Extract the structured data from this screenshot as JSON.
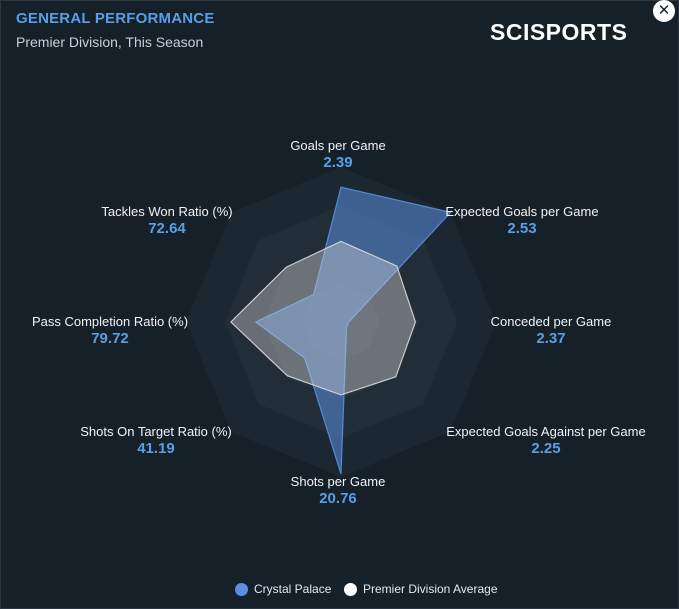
{
  "header": {
    "title": "GENERAL PERFORMANCE",
    "subtitle": "Premier Division, This Season",
    "logo": "SCISPORTS",
    "close_icon": "close-icon"
  },
  "colors": {
    "team": "#5b8fe0",
    "average": "#d9d9d9",
    "value_text": "#5b9ee6"
  },
  "chart_data": {
    "type": "radar",
    "title": "GENERAL PERFORMANCE",
    "subtitle": "Premier Division, This Season",
    "axes": [
      "Goals per Game",
      "Expected Goals per Game",
      "Conceded per Game",
      "Expected Goals Against per Game",
      "Shots per Game",
      "Shots On Target Ratio (%)",
      "Pass Completion Ratio (%)",
      "Tackles Won Ratio (%)"
    ],
    "value_labels": [
      "2.39",
      "2.53",
      "2.37",
      "2.25",
      "20.76",
      "41.19",
      "79.72",
      "72.64"
    ],
    "series": [
      {
        "name": "Crystal Palace",
        "color": "#5b8fe0",
        "normalized": [
          0.87,
          1.0,
          0.05,
          0.05,
          0.98,
          0.33,
          0.55,
          0.25
        ]
      },
      {
        "name": "Premier Division Average",
        "color": "#d9d9d9",
        "normalized": [
          0.52,
          0.51,
          0.48,
          0.5,
          0.47,
          0.49,
          0.71,
          0.5
        ]
      }
    ],
    "rings": 4,
    "legend": [
      "Crystal Palace",
      "Premier Division Average"
    ]
  }
}
